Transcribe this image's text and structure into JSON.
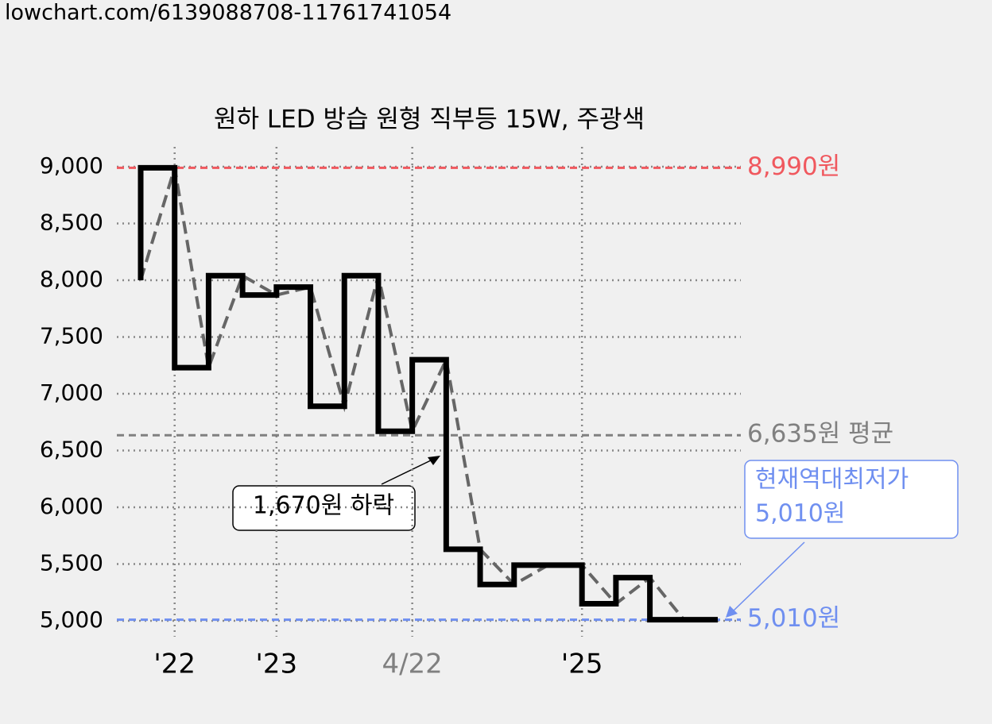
{
  "url": "lowchart.com/6139088708-11761741054",
  "chart_data": {
    "type": "step-line",
    "title": "원하 LED 방습 원형 직부등 15W, 주광색",
    "categories": [
      null,
      "'22",
      null,
      null,
      "'23",
      null,
      null,
      null,
      "4/22",
      null,
      null,
      null,
      null,
      "'25",
      null,
      null,
      null,
      null
    ],
    "category_colors": [
      null,
      "#000000",
      null,
      null,
      "#000000",
      null,
      null,
      null,
      "#808080",
      null,
      null,
      null,
      null,
      "#000000",
      null,
      null,
      null,
      null
    ],
    "values": [
      8000,
      8990,
      7230,
      8040,
      7870,
      7940,
      6890,
      8040,
      6670,
      7300,
      5630,
      5320,
      5490,
      5490,
      5150,
      5380,
      5010,
      5010
    ],
    "color": "#000000",
    "trend_color": "#666666",
    "ylim": [
      5000,
      9000
    ],
    "yticks": [
      {
        "value": 5000,
        "label": "5,000"
      },
      {
        "value": 5500,
        "label": "5,500"
      },
      {
        "value": 6000,
        "label": "6,000"
      },
      {
        "value": 6500,
        "label": "6,500"
      },
      {
        "value": 7000,
        "label": "7,000"
      },
      {
        "value": 7500,
        "label": "7,500"
      },
      {
        "value": 8000,
        "label": "8,000"
      },
      {
        "value": 8500,
        "label": "8,500"
      },
      {
        "value": 9000,
        "label": "9,000"
      }
    ],
    "grid": true,
    "reference_lines": [
      {
        "value": 8990,
        "label": "8,990원",
        "color": "#f0585e"
      },
      {
        "value": 6635,
        "label": "6,635원 평균",
        "color": "#808080"
      },
      {
        "value": 5010,
        "label": "5,010원",
        "color": "#6f8ff0"
      }
    ],
    "annotations": [
      {
        "text": "1,670원 하락"
      },
      {
        "lines": [
          "현재역대최저가",
          "5,010원"
        ],
        "color": "#6f8ff0"
      }
    ]
  }
}
